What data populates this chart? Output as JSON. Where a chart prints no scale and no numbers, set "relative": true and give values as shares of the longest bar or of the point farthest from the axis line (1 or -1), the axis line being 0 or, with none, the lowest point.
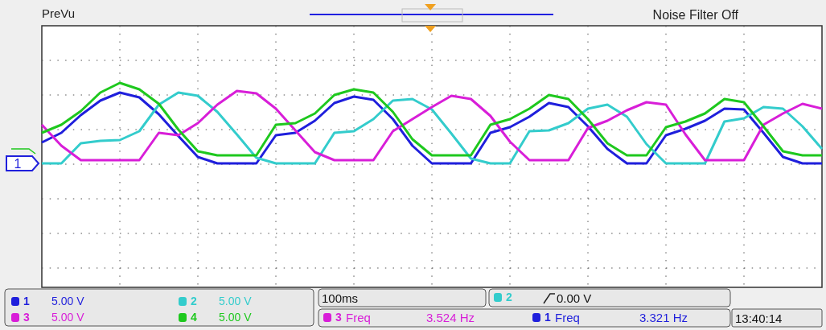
{
  "chart_data": {
    "type": "line",
    "relative": true,
    "legend": "bottom",
    "grid": true,
    "line_style": "solid",
    "categories": [
      null,
      null,
      null,
      null,
      null,
      null,
      null,
      null,
      null,
      null,
      null,
      null,
      null,
      null,
      null,
      null,
      null,
      null,
      null,
      null,
      null,
      null,
      null,
      null,
      null,
      null,
      null,
      null,
      null,
      null,
      null,
      null,
      null,
      null,
      null,
      null,
      null,
      null,
      null,
      null,
      null
    ],
    "series": [
      {
        "name": "1",
        "color": "#1f1fdc",
        "values": [
          0.26,
          0.38,
          0.6,
          0.78,
          0.88,
          0.82,
          0.61,
          0.34,
          0.08,
          0,
          0,
          0,
          0.35,
          0.38,
          0.53,
          0.75,
          0.83,
          0.79,
          0.55,
          0.22,
          0,
          0,
          0,
          0.38,
          0.45,
          0.58,
          0.75,
          0.7,
          0.46,
          0.18,
          0,
          0,
          0.35,
          0.43,
          0.53,
          0.68,
          0.67,
          0.38,
          0.08,
          0,
          0
        ]
      },
      {
        "name": "2",
        "color": "#33cccc",
        "values": [
          0,
          0,
          0.25,
          0.28,
          0.29,
          0.4,
          0.73,
          0.88,
          0.84,
          0.64,
          0.36,
          0.07,
          0,
          0,
          0,
          0.38,
          0.4,
          0.55,
          0.78,
          0.8,
          0.67,
          0.37,
          0.06,
          0,
          0,
          0.4,
          0.41,
          0.5,
          0.68,
          0.73,
          0.58,
          0.24,
          0,
          0,
          0,
          0.52,
          0.56,
          0.7,
          0.68,
          0.46,
          0.18
        ]
      },
      {
        "name": "3",
        "color": "#d81ed8",
        "values": [
          0.48,
          0.22,
          0.04,
          0.04,
          0.04,
          0.04,
          0.38,
          0.35,
          0.5,
          0.73,
          0.9,
          0.87,
          0.68,
          0.41,
          0.14,
          0.04,
          0.04,
          0.04,
          0.4,
          0.55,
          0.7,
          0.84,
          0.8,
          0.59,
          0.27,
          0.04,
          0.04,
          0.04,
          0.44,
          0.53,
          0.66,
          0.76,
          0.73,
          0.36,
          0.04,
          0.04,
          0.04,
          0.48,
          0.62,
          0.74,
          0.68
        ]
      },
      {
        "name": "4",
        "color": "#1ec81e",
        "values": [
          0.38,
          0.48,
          0.65,
          0.88,
          1,
          0.92,
          0.74,
          0.42,
          0.15,
          0.1,
          0.1,
          0.1,
          0.48,
          0.5,
          0.62,
          0.85,
          0.92,
          0.88,
          0.64,
          0.3,
          0.1,
          0.1,
          0.1,
          0.48,
          0.55,
          0.68,
          0.85,
          0.8,
          0.55,
          0.25,
          0.1,
          0.1,
          0.45,
          0.52,
          0.62,
          0.8,
          0.76,
          0.46,
          0.15,
          0.1,
          0.1
        ]
      }
    ],
    "annotations": [
      "PreVu",
      "Noise Filter Off",
      "5.00 V",
      "5.00 V",
      "5.00 V",
      "5.00 V",
      "100ms",
      "0.00 V",
      "Freq",
      "3.524 Hz",
      "Freq",
      "3.321 Hz",
      "13:40:14"
    ]
  }
}
